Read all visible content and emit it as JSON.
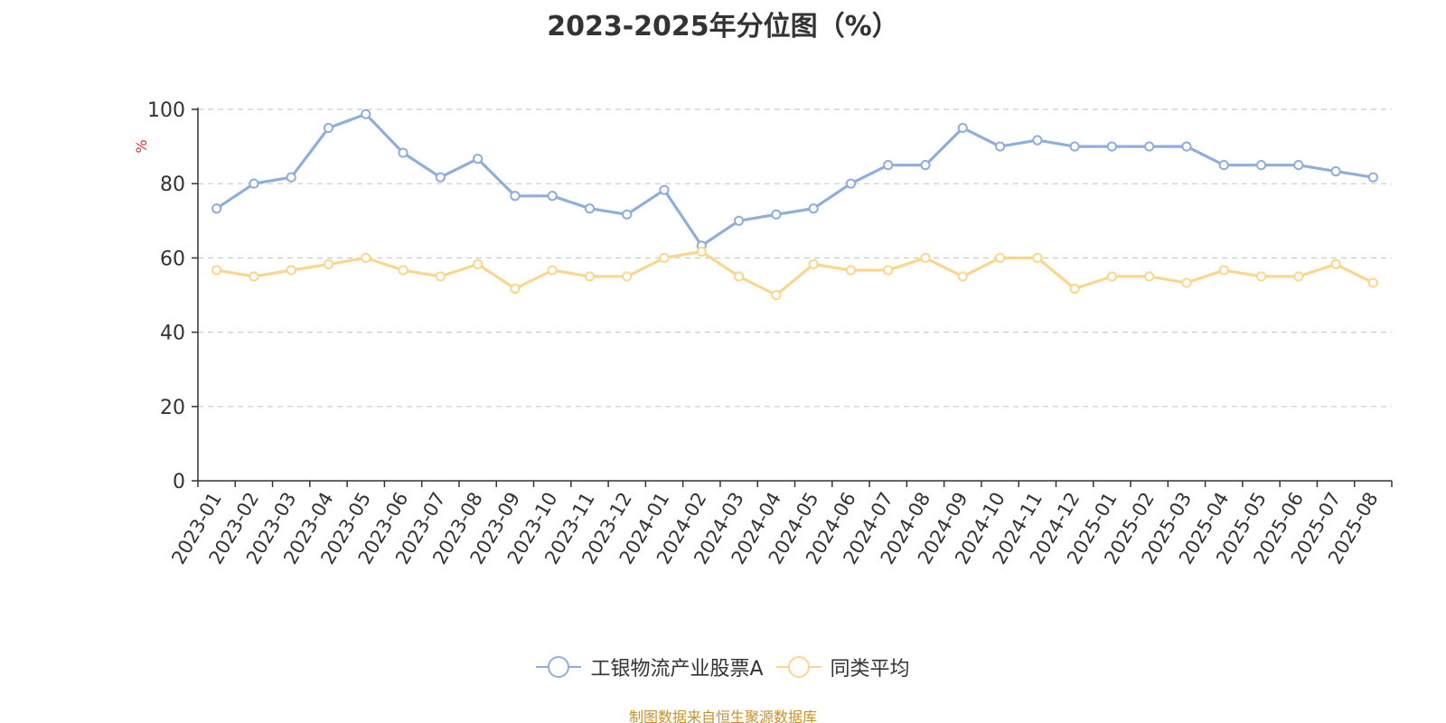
{
  "title": "2023-2025年分位图（%）",
  "footer": "制图数据来自恒生聚源数据库",
  "legend": {
    "series1": "工银物流产业股票A",
    "series2": "同类平均"
  },
  "colors": {
    "series1": "#8eaedb",
    "series2": "#fcd68f",
    "ylabel": "#e8302a",
    "footer": "#c8922a"
  },
  "chart_data": {
    "type": "line",
    "title": "2023-2025年分位图（%）",
    "xlabel": "",
    "ylabel": "%",
    "ylim": [
      0,
      100
    ],
    "yticks": [
      0,
      20,
      40,
      60,
      80,
      100
    ],
    "grid": true,
    "legend_position": "bottom",
    "categories": [
      "2023-01",
      "2023-02",
      "2023-03",
      "2023-04",
      "2023-05",
      "2023-06",
      "2023-07",
      "2023-08",
      "2023-09",
      "2023-10",
      "2023-11",
      "2023-12",
      "2024-01",
      "2024-02",
      "2024-03",
      "2024-04",
      "2024-05",
      "2024-06",
      "2024-07",
      "2024-08",
      "2024-09",
      "2024-10",
      "2024-11",
      "2024-12",
      "2025-01",
      "2025-02",
      "2025-03",
      "2025-04",
      "2025-05",
      "2025-06",
      "2025-07",
      "2025-08"
    ],
    "series": [
      {
        "name": "工银物流产业股票A",
        "color": "#8eaedb",
        "values": [
          73.3,
          80.0,
          81.7,
          95.0,
          98.7,
          88.3,
          81.7,
          86.7,
          76.7,
          76.7,
          73.3,
          71.7,
          78.3,
          63.3,
          70.0,
          71.7,
          73.3,
          80.0,
          85.0,
          85.0,
          95.0,
          90.0,
          91.7,
          90.0,
          90.0,
          90.0,
          90.0,
          85.0,
          85.0,
          85.0,
          83.3,
          81.7
        ]
      },
      {
        "name": "同类平均",
        "color": "#fcd68f",
        "values": [
          56.7,
          55.0,
          56.7,
          58.3,
          60.0,
          56.7,
          55.0,
          58.3,
          51.7,
          56.7,
          55.0,
          55.0,
          60.0,
          61.7,
          55.0,
          50.0,
          58.3,
          56.7,
          56.7,
          60.0,
          55.0,
          60.0,
          60.0,
          51.7,
          55.0,
          55.0,
          53.3,
          56.7,
          55.0,
          55.0,
          58.3,
          53.3
        ]
      }
    ]
  }
}
